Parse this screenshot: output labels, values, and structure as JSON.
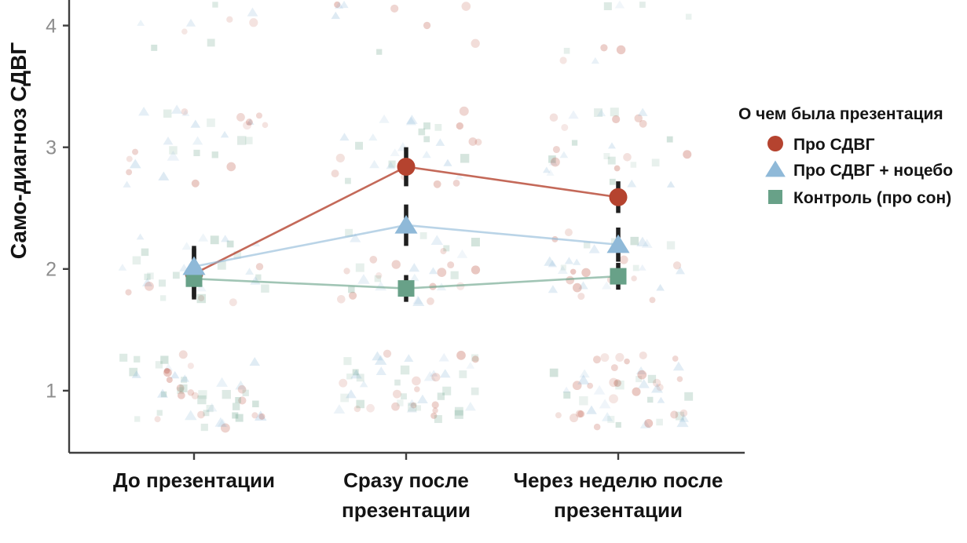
{
  "chart_data": {
    "type": "line",
    "title": "",
    "xlabel": "",
    "ylabel": "Само-диагноз СДВГ",
    "ylim": [
      0.49,
      4.21
    ],
    "y_ticks": [
      1,
      2,
      3,
      4
    ],
    "grid": false,
    "legend_position": "right",
    "legend_title": "О чем была презентация",
    "categories": [
      "До презентации",
      "Сразу после презентации",
      "Через неделю после презентации"
    ],
    "category_lines": [
      [
        "До презентации"
      ],
      [
        "Сразу после",
        "презентации"
      ],
      [
        "Через неделю после",
        "презентации"
      ]
    ],
    "series": [
      {
        "name": "Про СДВГ",
        "marker": "circle",
        "color": "#b5432f",
        "values": [
          1.96,
          2.84,
          2.59
        ],
        "errors": [
          0.21,
          0.16,
          0.13
        ]
      },
      {
        "name": "Про СДВГ + ноцебо",
        "marker": "triangle",
        "color": "#8fb9d8",
        "values": [
          2.02,
          2.36,
          2.2
        ],
        "errors": [
          0.17,
          0.17,
          0.14
        ]
      },
      {
        "name": "Контроль (про сон)",
        "marker": "square",
        "color": "#68a188",
        "values": [
          1.92,
          1.84,
          1.94
        ],
        "errors": [
          0.15,
          0.11,
          0.11
        ]
      }
    ],
    "error_bar_color": "#1f1f1f",
    "axis_color": "#3f3f3f",
    "jitter": {
      "description": "faint jittered raw responses clustered at each integer level per time point",
      "levels": [
        1,
        2,
        3,
        4
      ],
      "counts_per_level": [
        52,
        32,
        30,
        9
      ],
      "x_spread": 92,
      "y_spread": 48,
      "opacity_range": [
        0.12,
        0.3
      ],
      "seed": 7
    }
  }
}
